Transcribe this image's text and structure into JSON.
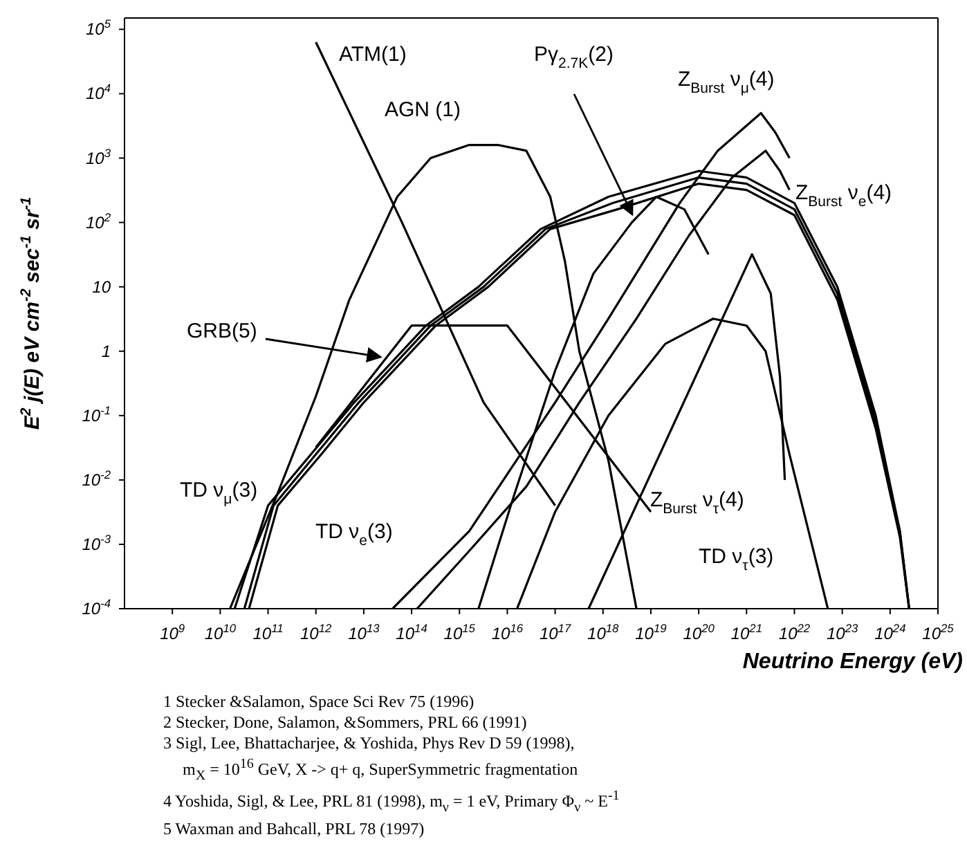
{
  "chart_data": {
    "type": "line",
    "log": "xy",
    "xlabel": "Neutrino Energy (eV)",
    "ylabel": "E$^{2}$ j(E) eV cm$^{-2}$ sec$^{-1}$ sr$^{-1}$",
    "xlim": [
      100000000.0,
      1e+25
    ],
    "ylim": [
      0.0001,
      150000.0
    ],
    "xticks": [
      {
        "value": 1000000000.0,
        "label": "10$^{9}$"
      },
      {
        "value": 10000000000.0,
        "label": "10$^{10}$"
      },
      {
        "value": 100000000000.0,
        "label": "10$^{11}$"
      },
      {
        "value": 1000000000000.0,
        "label": "10$^{12}$"
      },
      {
        "value": 10000000000000.0,
        "label": "10$^{13}$"
      },
      {
        "value": 100000000000000.0,
        "label": "10$^{14}$"
      },
      {
        "value": 1000000000000000.0,
        "label": "10$^{15}$"
      },
      {
        "value": 1e+16,
        "label": "10$^{16}$"
      },
      {
        "value": 1e+17,
        "label": "10$^{17}$"
      },
      {
        "value": 1e+18,
        "label": "10$^{18}$"
      },
      {
        "value": 1e+19,
        "label": "10$^{19}$"
      },
      {
        "value": 1e+20,
        "label": "10$^{20}$"
      },
      {
        "value": 1e+21,
        "label": "10$^{21}$"
      },
      {
        "value": 1e+22,
        "label": "10$^{22}$"
      },
      {
        "value": 1e+23,
        "label": "10$^{23}$"
      },
      {
        "value": 1e+24,
        "label": "10$^{24}$"
      },
      {
        "value": 1e+25,
        "label": "10$^{25}$"
      }
    ],
    "yticks": [
      {
        "value": 0.0001,
        "label": "10$^{-4}$"
      },
      {
        "value": 0.001,
        "label": "10$^{-3}$"
      },
      {
        "value": 0.01,
        "label": "10$^{-2}$"
      },
      {
        "value": 0.1,
        "label": "10$^{-1}$"
      },
      1,
      10,
      {
        "value": 100,
        "label": "10$^{2}$"
      },
      {
        "value": 1000,
        "label": "10$^{3}$"
      },
      {
        "value": 10000,
        "label": "10$^{4}$"
      },
      {
        "value": 100000,
        "label": "10$^{5}$"
      }
    ],
    "series": [
      {
        "name": "ATM(1)",
        "color": "#000000",
        "x": [
          1000000000000.0,
          63000000000000.0,
          3200000000000000.0,
          1e+17
        ],
        "values": [
          63000.0,
          100,
          0.16,
          0.004
        ]
      },
      {
        "name": "AGN (1)",
        "color": "#000000",
        "x": [
          16000000000.0,
          160000000000.0,
          1000000000000.0,
          5000000000000.0,
          50000000000000.0,
          250000000000000.0,
          1600000000000000.0,
          6300000000000000.0,
          2.5e+16,
          7.9e+16,
          1.6e+17,
          3.2e+17,
          1.3e+18,
          5e+18
        ],
        "values": [
          0.0001,
          0.0063,
          0.2,
          6.3,
          250,
          1000,
          1600,
          1600,
          1300,
          250,
          25,
          1,
          0.02,
          0.0001
        ]
      },
      {
        "name": "GRB(5)",
        "color": "#000000",
        "x": [
          1000000000000.0,
          100000000000000.0,
          1e+16,
          1e+19
        ],
        "values": [
          0.032,
          2.5,
          2.5,
          0.0032
        ]
      },
      {
        "name": "TD ν$_{μ}$(3)",
        "color": "#000000",
        "x": [
          20000000000.0,
          100000000000.0,
          790000000000.0,
          6300000000000.0,
          200000000000000.0,
          2500000000000000.0,
          5e+16,
          1.3e+18,
          1e+20,
          1e+21,
          1e+22,
          7.9e+22,
          5e+23,
          1.6e+24,
          2.5e+24
        ],
        "values": [
          0.0001,
          0.004,
          0.025,
          0.16,
          2.5,
          10,
          79,
          250,
          630,
          500,
          200,
          10,
          0.1,
          0.0016,
          0.0001
        ]
      },
      {
        "name": "TD ν$_{e}$(3)",
        "color": "#000000",
        "x": [
          32000000000.0,
          130000000000.0,
          1000000000000.0,
          7900000000000.0,
          250000000000000.0,
          3200000000000000.0,
          6.3e+16,
          1.6e+18,
          1e+20,
          1e+21,
          1e+22,
          7.9e+22,
          5e+23,
          1.6e+24,
          2.5e+24
        ],
        "values": [
          0.0001,
          0.004,
          0.025,
          0.16,
          2.5,
          10,
          79,
          200,
          500,
          400,
          160,
          7.9,
          0.079,
          0.0016,
          0.0001
        ]
      },
      {
        "color": "#000000",
        "x": [
          40000000000.0,
          160000000000.0,
          1300000000000.0,
          10000000000000.0,
          320000000000000.0,
          4000000000000000.0,
          7.9e+16,
          2e+18,
          1e+20,
          1e+21,
          1e+22,
          7.9e+22,
          5e+23,
          1.6e+24,
          2.5e+24
        ],
        "values": [
          0.0001,
          0.004,
          0.025,
          0.16,
          2.5,
          10,
          79,
          160,
          400,
          320,
          130,
          6.3,
          0.063,
          0.0013,
          0.0001
        ]
      },
      {
        "name": "Z$_{Burst}$ ν$_{μ}$(4)",
        "color": "#000000",
        "x": [
          40000000000000.0,
          1600000000000000.0,
          1e+17,
          1.3e+18,
          4e+19,
          2.5e+20,
          2e+21,
          4e+21,
          7.9e+21
        ],
        "values": [
          0.0001,
          0.0016,
          0.16,
          3.2,
          200,
          1300,
          5000,
          2500,
          1000
        ]
      },
      {
        "name": "Z$_{Burst}$ ν$_{e}$(4)",
        "color": "#000000",
        "x": [
          130000000000000.0,
          1600000000000000.0,
          2.5e+16,
          3.2e+17,
          5e+18,
          6.3e+19,
          5e+20,
          2.5e+21,
          5e+21,
          7.9e+21
        ],
        "values": [
          0.0001,
          0.00079,
          0.0079,
          0.16,
          3.2,
          63,
          500,
          1300,
          630,
          320
        ]
      },
      {
        "name": "Z$_{Burst}$ ν$_{τ}$(4)",
        "color": "#000000",
        "x": [
          5e+17,
          1.3e+21,
          3.2e+21,
          5e+21,
          6.3e+21
        ],
        "values": [
          0.0001,
          32,
          7.9,
          0.4,
          0.01
        ]
      },
      {
        "name": "TD ν$_{τ}$(3)",
        "color": "#000000",
        "x": [
          1.6e+16,
          1e+17,
          1.3e+18,
          2e+19,
          2e+20,
          1e+21,
          2.5e+21,
          7.9e+21,
          5e+22
        ],
        "values": [
          0.0001,
          0.0032,
          0.1,
          1.3,
          3.2,
          2.5,
          1,
          0.025,
          0.0001
        ]
      },
      {
        "name": "Pγ$_{2.7K}$(2)",
        "color": "#000000",
        "x": [
          2500000000000000.0,
          1.3e+16,
          1e+17,
          6.3e+17,
          4e+18,
          1.3e+19,
          5e+19,
          1.6e+20
        ],
        "values": [
          0.0001,
          0.005,
          0.5,
          16,
          100,
          250,
          160,
          32
        ]
      }
    ],
    "annotations": [
      "1 Stecker &Salamon, Space Sci Rev 75 (1996)",
      "2 Stecker, Done, Salamon, &Sommers, PRL 66 (1991)",
      "3 Sigl, Lee, Bhattacharjee, & Yoshida, Phys Rev D 59 (1998),",
      "m$_{X}$ = 10$^{16}$ GeV, X -> q+ q, SuperSymmetric fragmentation",
      "4 Yoshida, Sigl, & Lee, PRL 81 (1998), m$_{ν}$ = 1 eV, Primary Φ$_{ν}$ ~ E$^{-1}$",
      "5 Waxman and Bahcall, PRL 78 (1997)"
    ]
  }
}
